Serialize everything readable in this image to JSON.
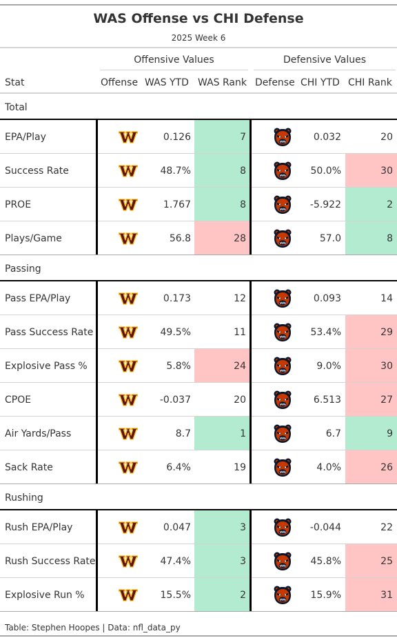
{
  "chart_data": {
    "type": "table",
    "title": "WAS Offense vs CHI Defense",
    "subtitle": "2025 Week 6",
    "spanners": {
      "offense": "Offensive Values",
      "defense": "Defensive Values"
    },
    "columns": {
      "stat": "Stat",
      "offense": "Offense",
      "off_ytd": "WAS YTD",
      "off_rank": "WAS Rank",
      "defense": "Defense",
      "def_ytd": "CHI YTD",
      "def_rank": "CHI Rank"
    },
    "rank_colors": {
      "good": "#b3ebd1",
      "bad": "#ffc4c4"
    },
    "groups": [
      {
        "label": "Total",
        "rows": [
          {
            "stat": "EPA/Play",
            "off_ytd": "0.126",
            "off_rank": 7,
            "def_ytd": "0.032",
            "def_rank": 20
          },
          {
            "stat": "Success Rate",
            "off_ytd": "48.7%",
            "off_rank": 8,
            "def_ytd": "50.0%",
            "def_rank": 30
          },
          {
            "stat": "PROE",
            "off_ytd": "1.767",
            "off_rank": 8,
            "def_ytd": "-5.922",
            "def_rank": 2
          },
          {
            "stat": "Plays/Game",
            "off_ytd": "56.8",
            "off_rank": 28,
            "def_ytd": "57.0",
            "def_rank": 8
          }
        ]
      },
      {
        "label": "Passing",
        "rows": [
          {
            "stat": "Pass EPA/Play",
            "off_ytd": "0.173",
            "off_rank": 12,
            "def_ytd": "0.093",
            "def_rank": 14
          },
          {
            "stat": "Pass Success Rate",
            "off_ytd": "49.5%",
            "off_rank": 11,
            "def_ytd": "53.4%",
            "def_rank": 29
          },
          {
            "stat": "Explosive Pass %",
            "off_ytd": "5.8%",
            "off_rank": 24,
            "def_ytd": "9.0%",
            "def_rank": 30
          },
          {
            "stat": "CPOE",
            "off_ytd": "-0.037",
            "off_rank": 20,
            "def_ytd": "6.513",
            "def_rank": 27
          },
          {
            "stat": "Air Yards/Pass",
            "off_ytd": "8.7",
            "off_rank": 1,
            "def_ytd": "6.7",
            "def_rank": 9
          },
          {
            "stat": "Sack Rate",
            "off_ytd": "6.4%",
            "off_rank": 19,
            "def_ytd": "4.0%",
            "def_rank": 26
          }
        ]
      },
      {
        "label": "Rushing",
        "rows": [
          {
            "stat": "Rush EPA/Play",
            "off_ytd": "0.047",
            "off_rank": 3,
            "def_ytd": "-0.044",
            "def_rank": 22
          },
          {
            "stat": "Rush Success Rate",
            "off_ytd": "47.4%",
            "off_rank": 3,
            "def_ytd": "45.8%",
            "def_rank": 25
          },
          {
            "stat": "Explosive Run %",
            "off_ytd": "15.5%",
            "off_rank": 2,
            "def_ytd": "15.9%",
            "def_rank": 31
          }
        ]
      }
    ],
    "footer": "Table: Stephen Hoopes | Data: nfl_data_py"
  },
  "logos": {
    "offense": "commanders-w-logo-icon",
    "defense": "bears-head-logo-icon",
    "offense_colors": [
      "#5a1414",
      "#ffb612"
    ],
    "defense_colors": [
      "#0b162a",
      "#c83803"
    ]
  }
}
